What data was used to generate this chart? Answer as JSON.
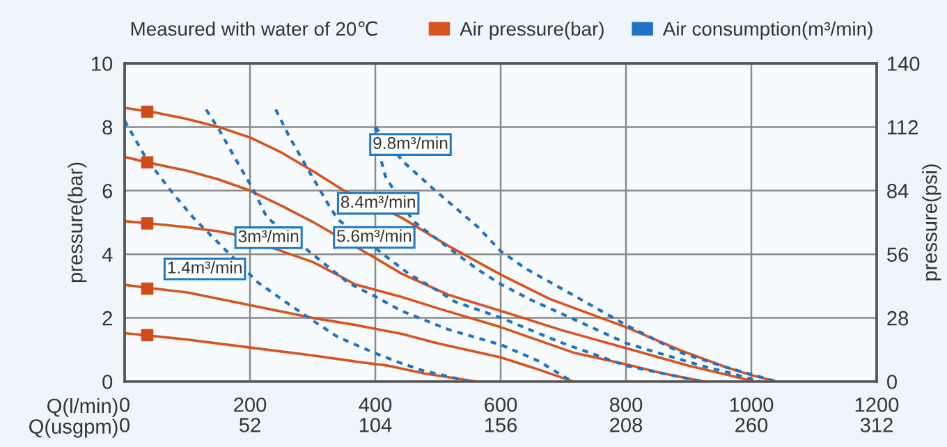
{
  "chart_data": {
    "type": "line",
    "xlabel": "Q(l/min)",
    "x2label": "Q(usgpm)",
    "ylabel": "pressure(bar)",
    "y2label": "pressure(psi)",
    "xlim": [
      0,
      1200
    ],
    "xticks": [
      0,
      200,
      400,
      600,
      800,
      1000,
      1200
    ],
    "x2lim": [
      0,
      312
    ],
    "x2ticks": [
      0,
      52,
      104,
      156,
      208,
      260,
      312
    ],
    "ylim": [
      0,
      10
    ],
    "yticks": [
      0,
      2,
      4,
      6,
      8,
      10
    ],
    "y2lim": [
      0,
      140
    ],
    "y2ticks": [
      0,
      28,
      56,
      84,
      112,
      140
    ],
    "grid": true,
    "legend": "top",
    "line_style": "solid",
    "series": [
      {
        "name": "Air pressure(bar)",
        "color": "#d9531e",
        "x": [
          0,
          50,
          100,
          150,
          200,
          250,
          300,
          350,
          442,
          516,
          600,
          679,
          800,
          887,
          960,
          1000,
          1040
        ],
        "values": [
          8.6,
          8.45,
          8.25,
          8.0,
          7.67,
          7.2,
          6.62,
          6.0,
          5.15,
          4.27,
          3.36,
          2.59,
          1.71,
          0.98,
          0.45,
          0.2,
          0
        ]
      },
      {
        "color": "#d9531e",
        "x": [
          0,
          36,
          101,
          150,
          200,
          250,
          301,
          400,
          442,
          516,
          600,
          700,
          800,
          900,
          960,
          1005
        ],
        "values": [
          7.06,
          6.89,
          6.62,
          6.35,
          6.0,
          5.53,
          5.01,
          3.88,
          3.39,
          2.73,
          2.22,
          1.6,
          1.05,
          0.5,
          0.22,
          0
        ]
      },
      {
        "color": "#d9531e",
        "x": [
          0,
          50,
          100,
          150,
          175,
          301,
          340,
          368,
          442,
          500,
          600,
          716,
          800,
          860,
          924
        ],
        "values": [
          5.04,
          4.95,
          4.85,
          4.72,
          4.62,
          3.75,
          3.35,
          3.05,
          2.66,
          2.3,
          1.71,
          0.91,
          0.54,
          0.25,
          0
        ]
      },
      {
        "color": "#d9531e",
        "x": [
          0,
          36,
          100,
          200,
          300,
          368,
          442,
          500,
          600,
          660,
          716
        ],
        "values": [
          3.04,
          2.95,
          2.8,
          2.4,
          2.0,
          1.78,
          1.5,
          1.2,
          0.76,
          0.38,
          0
        ]
      },
      {
        "color": "#d9531e",
        "x": [
          0,
          36,
          100,
          200,
          300,
          368,
          420,
          479,
          561
        ],
        "values": [
          1.52,
          1.45,
          1.32,
          1.07,
          0.82,
          0.63,
          0.5,
          0.25,
          0
        ]
      },
      {
        "type": "scatter",
        "marker": "square",
        "color": "#d24a1a",
        "x": [
          36,
          36,
          36,
          36,
          36
        ],
        "values": [
          8.48,
          6.89,
          4.97,
          2.92,
          1.46
        ]
      },
      {
        "name": "Air consumption(m³/min)",
        "color": "#1e74c2",
        "line_style": "dashed",
        "x": [
          0,
          35,
          72,
          109,
          146,
          213,
          257,
          294,
          340,
          401,
          438,
          475,
          512,
          550
        ],
        "values": [
          8.2,
          6.99,
          6.04,
          5.16,
          4.43,
          3.11,
          2.5,
          2.0,
          1.4,
          0.88,
          0.6,
          0.35,
          0.18,
          0
        ]
      },
      {
        "color": "#1e74c2",
        "line_style": "dashed",
        "x": [
          130,
          150,
          175,
          205,
          227,
          320,
          357,
          401,
          442,
          516,
          601,
          660,
          714
        ],
        "values": [
          8.55,
          7.94,
          7.06,
          6.04,
          5.16,
          3.68,
          3.1,
          2.66,
          2.22,
          1.64,
          1.15,
          0.65,
          0
        ]
      },
      {
        "color": "#1e74c2",
        "line_style": "dashed",
        "x": [
          241,
          264,
          294,
          324,
          340,
          453,
          500,
          527,
          565,
          601,
          650,
          700,
          750,
          800,
          860,
          922
        ],
        "values": [
          8.55,
          7.65,
          6.62,
          5.6,
          5.1,
          3.39,
          2.85,
          2.51,
          2.25,
          2.0,
          1.6,
          1.2,
          0.85,
          0.5,
          0.25,
          0
        ]
      },
      {
        "color": "#1e74c2",
        "line_style": "dashed",
        "x": [
          400,
          410,
          416,
          460,
          490,
          527,
          565,
          601,
          650,
          684,
          740,
          801,
          860,
          920,
          970,
          1014
        ],
        "values": [
          8.0,
          6.9,
          6.45,
          5.05,
          4.6,
          4.05,
          3.5,
          3.05,
          2.55,
          2.25,
          1.75,
          1.2,
          0.85,
          0.5,
          0.25,
          0
        ]
      },
      {
        "color": "#1e74c2",
        "line_style": "dashed",
        "x": [
          400,
          445,
          490,
          564,
          600,
          640,
          701,
          800,
          887,
          960,
          1040
        ],
        "values": [
          8.0,
          6.9,
          6.1,
          4.85,
          4.1,
          3.55,
          2.88,
          1.78,
          0.91,
          0.45,
          0
        ]
      }
    ],
    "annotations": [
      "Measured with water of 20℃",
      {
        "text": "9.8m³/min",
        "x": 405,
        "y": 7.45
      },
      {
        "text": "8.4m³/min",
        "x": 443,
        "y": 5.6
      },
      {
        "text": "3m³/min",
        "x": 267,
        "y": 4.52
      },
      {
        "text": "5.6m³/min",
        "x": 378,
        "y": 4.53
      },
      {
        "text": "1.4m³/min",
        "x": 191,
        "y": 3.54
      }
    ]
  }
}
